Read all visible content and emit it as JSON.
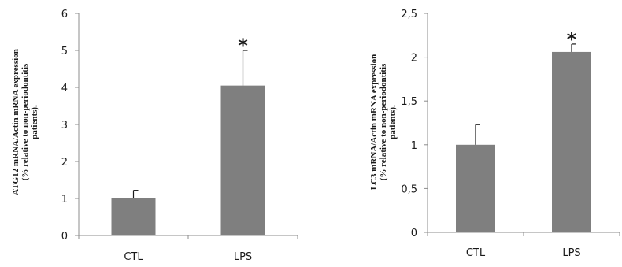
{
  "chart_data": [
    {
      "type": "bar",
      "categories": [
        "CTL",
        "LPS"
      ],
      "values": [
        1.0,
        4.05
      ],
      "error": [
        0.22,
        0.95
      ],
      "significance": [
        "",
        "*"
      ],
      "ylabel": "ATG12 mRNA/Actin mRNA expression (% relative to non-periodontitis patients).",
      "ylabel_lines": [
        "ATG12 mRNA/Actin mRNA expression",
        "(% relative to non-periodontitis",
        "patients)."
      ],
      "ylim": [
        0,
        6
      ],
      "yticks": [
        0,
        1,
        2,
        3,
        4,
        5,
        6
      ],
      "ytick_labels": [
        "0",
        "1",
        "2",
        "3",
        "4",
        "5",
        "6"
      ],
      "bar_color": "#7f7f7f",
      "grid": false
    },
    {
      "type": "bar",
      "categories": [
        "CTL",
        "LPS"
      ],
      "values": [
        1.0,
        2.06
      ],
      "error": [
        0.23,
        0.09
      ],
      "significance": [
        "",
        "*"
      ],
      "ylabel": "LC3 mRNA/Actin mRNA expression (% relative to non-periodontitis patients).",
      "ylabel_lines": [
        "LC3 mRNA/Actin mRNA expression",
        "(% relative to non-periodontitis",
        "patients)."
      ],
      "ylim": [
        0,
        2.5
      ],
      "yticks": [
        0,
        0.5,
        1,
        1.5,
        2,
        2.5
      ],
      "ytick_labels": [
        "0",
        "0,5",
        "1",
        "1,5",
        "2",
        "2,5"
      ],
      "bar_color": "#7f7f7f",
      "grid": false
    }
  ]
}
